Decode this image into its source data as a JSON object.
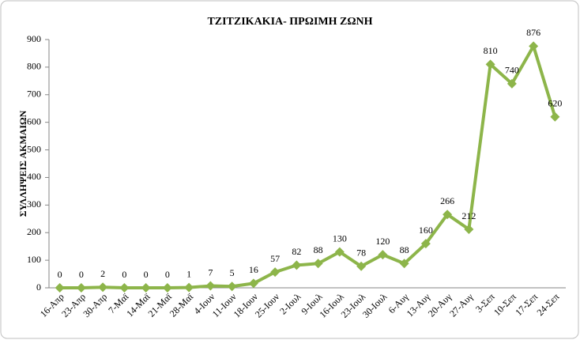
{
  "chart_data": {
    "type": "line",
    "title": "ΤΖΙΤΖΙΚΑΚΙΑ- ΠΡΩΙΜΗ ΖΩΝΗ",
    "y_label": "ΣΥΛΛΗΨΕΙΣ ΑΚΜΑΙΩΝ",
    "categories": [
      "16-Απρ",
      "23-Απρ",
      "30-Απρ",
      "7-Μαϊ",
      "14-Μαϊ",
      "21-Μαϊ",
      "28-Μαϊ",
      "4-Ιουν",
      "11-Ιουν",
      "18-Ιουν",
      "25-Ιουν",
      "2-Ιουλ",
      "9-Ιουλ",
      "16-Ιουλ",
      "23-Ιουλ",
      "30-Ιουλ",
      "6-Αυγ",
      "13-Αυγ",
      "20-Αυγ",
      "27-Αυγ",
      "3-Σεπ",
      "10-Σεπ",
      "17-Σεπ",
      "24-Σεπ"
    ],
    "values": [
      0,
      0,
      2,
      0,
      0,
      0,
      1,
      7,
      5,
      16,
      57,
      82,
      88,
      130,
      78,
      120,
      88,
      160,
      266,
      212,
      810,
      740,
      876,
      620
    ],
    "color": "#8db54a",
    "ylim": [
      0,
      900
    ],
    "yticks": [
      0,
      100,
      200,
      300,
      400,
      500,
      600,
      700,
      800,
      900
    ],
    "grid": false
  }
}
